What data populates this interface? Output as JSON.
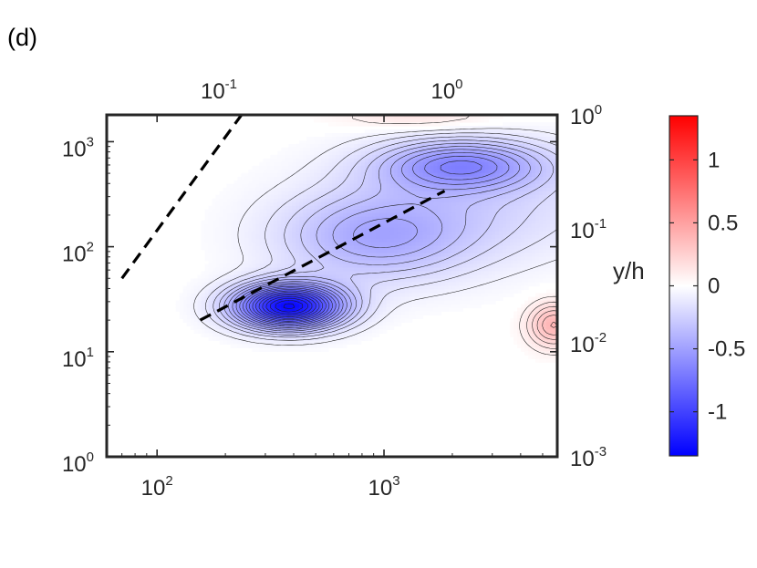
{
  "panel_label": "(d)",
  "chart_data": {
    "type": "heatmap",
    "subtype": "filled-contour",
    "title": "",
    "xlabel": "",
    "ylabel": "",
    "x_scale": "log",
    "y_scale": "log",
    "xlim": [
      60,
      5800
    ],
    "ylim": [
      1,
      1800
    ],
    "x_ticks": [
      {
        "value": 100,
        "base": "10",
        "exp": "2"
      },
      {
        "value": 1000,
        "base": "10",
        "exp": "3"
      }
    ],
    "y_ticks": [
      {
        "value": 1,
        "base": "10",
        "exp": "0"
      },
      {
        "value": 10,
        "base": "10",
        "exp": "1"
      },
      {
        "value": 100,
        "base": "10",
        "exp": "2"
      },
      {
        "value": 1000,
        "base": "10",
        "exp": "3"
      }
    ],
    "top_axis": {
      "scale": "log",
      "ticks": [
        {
          "value": 0.1,
          "base": "10",
          "exp": "-1"
        },
        {
          "value": 1,
          "base": "10",
          "exp": "0"
        }
      ]
    },
    "right_axis": {
      "label": "y/h",
      "scale": "log",
      "ticks": [
        {
          "value": 0.001,
          "base": "10",
          "exp": "-3"
        },
        {
          "value": 0.01,
          "base": "10",
          "exp": "-2"
        },
        {
          "value": 0.1,
          "base": "10",
          "exp": "-1"
        },
        {
          "value": 1,
          "base": "10",
          "exp": "0"
        }
      ]
    },
    "colorbar": {
      "range": [
        -1.35,
        1.35
      ],
      "colormap": "blue-white-red",
      "low_color": "#0000ff",
      "mid_color": "#ffffff",
      "high_color": "#ff0000",
      "ticks": [
        {
          "value": 1,
          "label": "1"
        },
        {
          "value": 0.5,
          "label": "0.5"
        },
        {
          "value": 0,
          "label": "0"
        },
        {
          "value": -0.5,
          "label": "-0.5"
        },
        {
          "value": -1,
          "label": "-1"
        }
      ]
    },
    "features": [
      {
        "name": "primary negative peak",
        "x": 380,
        "y": 27,
        "value": -1.3,
        "sx": 0.17,
        "sy": 0.15
      },
      {
        "name": "secondary negative peak",
        "x": 2200,
        "y": 600,
        "value": -0.55,
        "sx": 0.26,
        "sy": 0.17
      },
      {
        "name": "negative ridge",
        "x": 900,
        "y": 120,
        "value": -0.4,
        "sx": 0.3,
        "sy": 0.3
      },
      {
        "name": "outer negative lobe",
        "x": 2500,
        "y": 250,
        "value": -0.2,
        "sx": 0.45,
        "sy": 0.38
      },
      {
        "name": "positive patch top",
        "x": 1400,
        "y": 1700,
        "value": 0.15,
        "sx": 0.25,
        "sy": 0.08
      },
      {
        "name": "positive patch right",
        "x": 5600,
        "y": 18,
        "value": 0.4,
        "sx": 0.08,
        "sy": 0.15
      }
    ],
    "reference_lines": [
      {
        "style": "dashed",
        "x": [
          70,
          240
        ],
        "y": [
          50,
          1900
        ]
      },
      {
        "style": "dashed",
        "x": [
          155,
          1850
        ],
        "y": [
          20,
          340
        ]
      }
    ],
    "grid": false,
    "legend": "none"
  }
}
